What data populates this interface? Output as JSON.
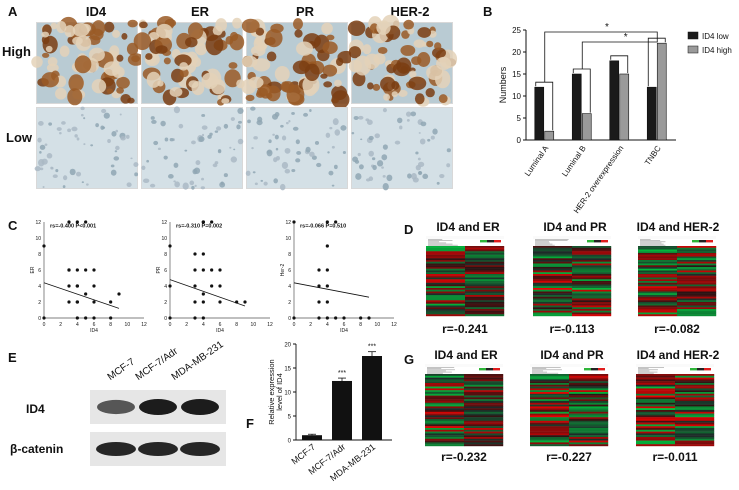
{
  "panels": {
    "A": "A",
    "B": "B",
    "C": "C",
    "D": "D",
    "E": "E",
    "F": "F",
    "G": "G"
  },
  "ihc": {
    "columns": [
      "ID4",
      "ER",
      "PR",
      "HER-2"
    ],
    "rows": [
      "High",
      "Low"
    ]
  },
  "heatmaps_d": [
    {
      "title": "ID4 and ER",
      "r": "r=-0.241"
    },
    {
      "title": "ID4 and PR",
      "r": "r=-0.113"
    },
    {
      "title": "ID4 and HER-2",
      "r": "r=-0.082"
    }
  ],
  "heatmaps_g": [
    {
      "title": "ID4 and ER",
      "r": "r=-0.232"
    },
    {
      "title": "ID4 and PR",
      "r": "r=-0.227"
    },
    {
      "title": "ID4 and HER-2",
      "r": "r=-0.011"
    }
  ],
  "blot": {
    "columns": [
      "MCF-7",
      "MCF-7/Adr",
      "MDA-MB-231"
    ],
    "bands": [
      "ID4",
      "β-catenin"
    ]
  },
  "colors": {
    "dark_bar": "#1a1a1a",
    "grey_bar": "#9a9a9a",
    "heat_red": "#e01e1e",
    "heat_green": "#2fb53a",
    "ihc_brown": "#8a4a1c",
    "ihc_blue": "#c9d8df"
  },
  "chart_data": [
    {
      "id": "B",
      "type": "bar",
      "categories": [
        "Luminal A",
        "Luminal B",
        "HER-2 overexpression",
        "TNBC"
      ],
      "series": [
        {
          "name": "ID4 low",
          "values": [
            12,
            15,
            18,
            12
          ]
        },
        {
          "name": "ID4 high",
          "values": [
            2,
            6,
            15,
            22
          ]
        }
      ],
      "xlabel": "",
      "ylabel": "Numbers",
      "ylim": [
        0,
        25
      ],
      "yticks": [
        0,
        5,
        10,
        15,
        20,
        25
      ],
      "legend": "top-right",
      "annotations": [
        "*",
        "*"
      ]
    },
    {
      "id": "C1",
      "type": "scatter",
      "x": [
        0,
        0,
        3,
        3,
        3,
        4,
        4,
        4,
        4,
        5,
        5,
        6,
        6,
        6,
        8,
        9,
        4,
        4,
        3,
        5,
        6,
        3,
        4,
        5,
        8
      ],
      "y": [
        0,
        9,
        6,
        6,
        4,
        4,
        6,
        2,
        12,
        12,
        0,
        0,
        2,
        6,
        2,
        3,
        0,
        2,
        12,
        3,
        4,
        2,
        4,
        6,
        0
      ],
      "trend": [
        [
          0,
          4.4
        ],
        [
          9,
          1.2
        ]
      ],
      "xlabel": "ID4",
      "ylabel": "ER",
      "xlim": [
        0,
        12
      ],
      "ylim": [
        0,
        12
      ],
      "xticks": [
        0,
        2,
        4,
        6,
        8,
        10,
        12
      ],
      "yticks": [
        0,
        2,
        4,
        6,
        8,
        10,
        12
      ],
      "stat_r": "rs=-0.400",
      "stat_p": "P<0.001"
    },
    {
      "id": "C2",
      "type": "scatter",
      "x": [
        0,
        0,
        0,
        3,
        3,
        3,
        4,
        4,
        4,
        4,
        5,
        5,
        6,
        6,
        8,
        9,
        3,
        4,
        4,
        5,
        6,
        3,
        4
      ],
      "y": [
        0,
        4,
        9,
        0,
        4,
        6,
        0,
        2,
        6,
        12,
        4,
        12,
        2,
        6,
        2,
        2,
        8,
        8,
        3,
        6,
        4,
        2,
        12
      ],
      "trend": [
        [
          0,
          4.8
        ],
        [
          9,
          1.5
        ]
      ],
      "xlabel": "ID4",
      "ylabel": "PR",
      "xlim": [
        0,
        12
      ],
      "ylim": [
        0,
        12
      ],
      "xticks": [
        0,
        2,
        4,
        6,
        8,
        10,
        12
      ],
      "yticks": [
        0,
        2,
        4,
        6,
        8,
        10,
        12
      ],
      "stat_r": "rs=-0.310",
      "stat_p": "P=0.002"
    },
    {
      "id": "C3",
      "type": "scatter",
      "x": [
        0,
        0,
        3,
        3,
        3,
        4,
        4,
        4,
        4,
        4,
        5,
        6,
        8,
        9,
        3,
        4,
        5
      ],
      "y": [
        0,
        12,
        0,
        2,
        6,
        0,
        2,
        6,
        9,
        12,
        0,
        0,
        0,
        0,
        4,
        4,
        12
      ],
      "trend": [
        [
          0,
          4.4
        ],
        [
          9,
          2.6
        ]
      ],
      "xlabel": "ID4",
      "ylabel": "Her-2",
      "xlim": [
        0,
        12
      ],
      "ylim": [
        0,
        12
      ],
      "xticks": [
        0,
        2,
        4,
        6,
        8,
        10,
        12
      ],
      "yticks": [
        0,
        2,
        4,
        6,
        8,
        10,
        12
      ],
      "stat_r": "rs=-0.066",
      "stat_p": "P=0.510"
    },
    {
      "id": "F",
      "type": "bar",
      "categories": [
        "MCF-7",
        "MCF-7/Adr",
        "MDA-MB-231"
      ],
      "values": [
        1,
        12.3,
        17.5
      ],
      "errors": [
        0.2,
        0.6,
        0.9
      ],
      "significance": [
        "",
        "***",
        "***"
      ],
      "ylabel": "Relative expression level of ID4",
      "ylim": [
        0,
        20
      ],
      "yticks": [
        0,
        5,
        10,
        15,
        20
      ]
    }
  ]
}
